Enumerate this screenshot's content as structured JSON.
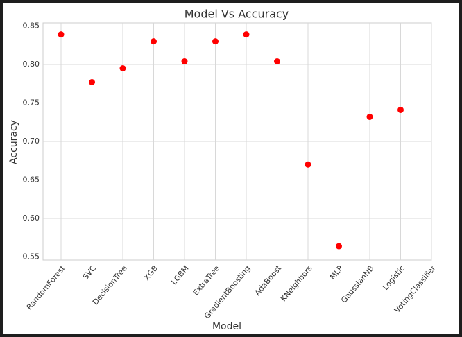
{
  "chart_data": {
    "type": "scatter",
    "title": "Model Vs Accuracy",
    "x_label": "Model",
    "y_label": "Accuracy",
    "categories": [
      "RandomForest",
      "SVC",
      "DecisionTree",
      "XGB",
      "LGBM",
      "ExtraTree",
      "GradientBoosting",
      "AdaBoost",
      "KNeighbors",
      "MLP",
      "GaussianNB",
      "Logistic",
      "VotingClassifier"
    ],
    "values": [
      0.839,
      0.777,
      0.795,
      0.83,
      0.804,
      0.83,
      0.839,
      0.804,
      0.67,
      0.564,
      0.732,
      0.741,
      null
    ],
    "color": "#ff0000",
    "ylim": [
      0.546,
      0.854
    ],
    "yticks": [
      0.55,
      {
        "value": 0.6,
        "label": "0.60"
      },
      0.65,
      {
        "value": 0.7,
        "label": "0.70"
      },
      0.75,
      {
        "value": 0.8,
        "label": "0.80"
      },
      0.85
    ],
    "grid": true
  }
}
